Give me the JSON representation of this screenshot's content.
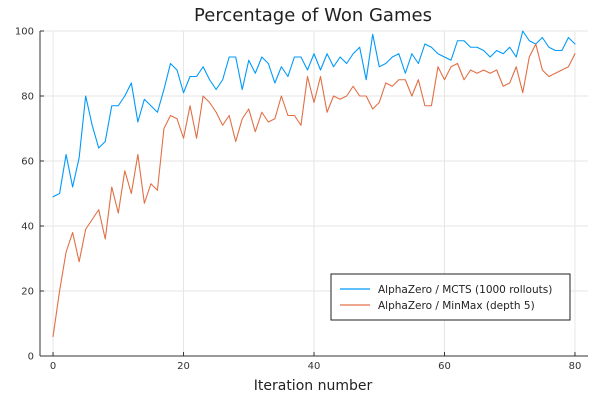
{
  "chart_data": {
    "type": "line",
    "title": "Percentage of Won Games",
    "xlabel": "Iteration number",
    "ylabel": "",
    "xlim": [
      -2,
      82
    ],
    "ylim": [
      0,
      100
    ],
    "xticks": [
      0,
      20,
      40,
      60,
      80
    ],
    "yticks": [
      0,
      20,
      40,
      60,
      80,
      100
    ],
    "grid": true,
    "legend_position": "bottom-right",
    "x": [
      0,
      1,
      2,
      3,
      4,
      5,
      6,
      7,
      8,
      9,
      10,
      11,
      12,
      13,
      14,
      15,
      16,
      17,
      18,
      19,
      20,
      21,
      22,
      23,
      24,
      25,
      26,
      27,
      28,
      29,
      30,
      31,
      32,
      33,
      34,
      35,
      36,
      37,
      38,
      39,
      40,
      41,
      42,
      43,
      44,
      45,
      46,
      47,
      48,
      49,
      50,
      51,
      52,
      53,
      54,
      55,
      56,
      57,
      58,
      59,
      60,
      61,
      62,
      63,
      64,
      65,
      66,
      67,
      68,
      69,
      70,
      71,
      72,
      73,
      74,
      75,
      76,
      77,
      78,
      79,
      80
    ],
    "series": [
      {
        "name": "AlphaZero  / MCTS (1000 rollouts)",
        "color": "#009AFA",
        "values": [
          49,
          50,
          62,
          52,
          61,
          80,
          71,
          64,
          66,
          77,
          77,
          80,
          84,
          72,
          79,
          77,
          75,
          82,
          90,
          88,
          81,
          86,
          86,
          89,
          85,
          82,
          85,
          92,
          92,
          82,
          91,
          87,
          92,
          90,
          84,
          89,
          86,
          92,
          92,
          88,
          93,
          88,
          93,
          89,
          92,
          90,
          93,
          95,
          85,
          99,
          89,
          90,
          92,
          93,
          87,
          93,
          90,
          96,
          95,
          93,
          92,
          91,
          97,
          97,
          95,
          95,
          94,
          92,
          94,
          93,
          95,
          92,
          100,
          97,
          96,
          98,
          95,
          94,
          94,
          98,
          96
        ]
      },
      {
        "name": "AlphaZero  / MinMax (depth 5)",
        "color": "#E26F46",
        "values": [
          6,
          20,
          32,
          38,
          29,
          39,
          42,
          45,
          36,
          52,
          44,
          57,
          50,
          62,
          47,
          53,
          51,
          70,
          74,
          73,
          67,
          77,
          67,
          80,
          78,
          75,
          71,
          74,
          66,
          73,
          76,
          69,
          75,
          72,
          73,
          80,
          74,
          74,
          71,
          86,
          78,
          86,
          75,
          80,
          79,
          80,
          83,
          80,
          80,
          76,
          78,
          84,
          83,
          85,
          85,
          80,
          85,
          77,
          77,
          89,
          85,
          89,
          90,
          85,
          88,
          87,
          88,
          87,
          88,
          83,
          84,
          89,
          81,
          92,
          96,
          88,
          86,
          87,
          88,
          89,
          93
        ]
      }
    ]
  }
}
